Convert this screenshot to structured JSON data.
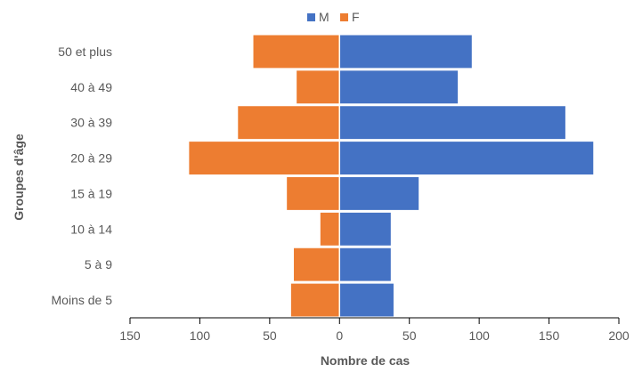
{
  "chart_data": {
    "type": "bar",
    "orientation": "horizontal",
    "layout": "population-pyramid",
    "categories": [
      "50 et plus",
      "40 à 49",
      "30 à 39",
      "20 à 29",
      "15 à 19",
      "10 à 14",
      "5 à 9",
      "Moins de 5"
    ],
    "series": [
      {
        "name": "M",
        "color": "#4472C4",
        "values": [
          95,
          85,
          162,
          182,
          57,
          37,
          37,
          39
        ]
      },
      {
        "name": "F",
        "color": "#ED7D31",
        "values": [
          -62,
          -31,
          -73,
          -108,
          -38,
          -14,
          -33,
          -35
        ]
      }
    ],
    "xlabel": "Nombre de cas",
    "ylabel": "Groupes d'âge",
    "xlim": [
      -150,
      200
    ],
    "xticks": [
      -150,
      -100,
      -50,
      0,
      50,
      100,
      150,
      200
    ],
    "xtick_labels": [
      "150",
      "100",
      "50",
      "0",
      "50",
      "100",
      "150",
      "200"
    ],
    "legend_position": "top",
    "grid": false
  }
}
